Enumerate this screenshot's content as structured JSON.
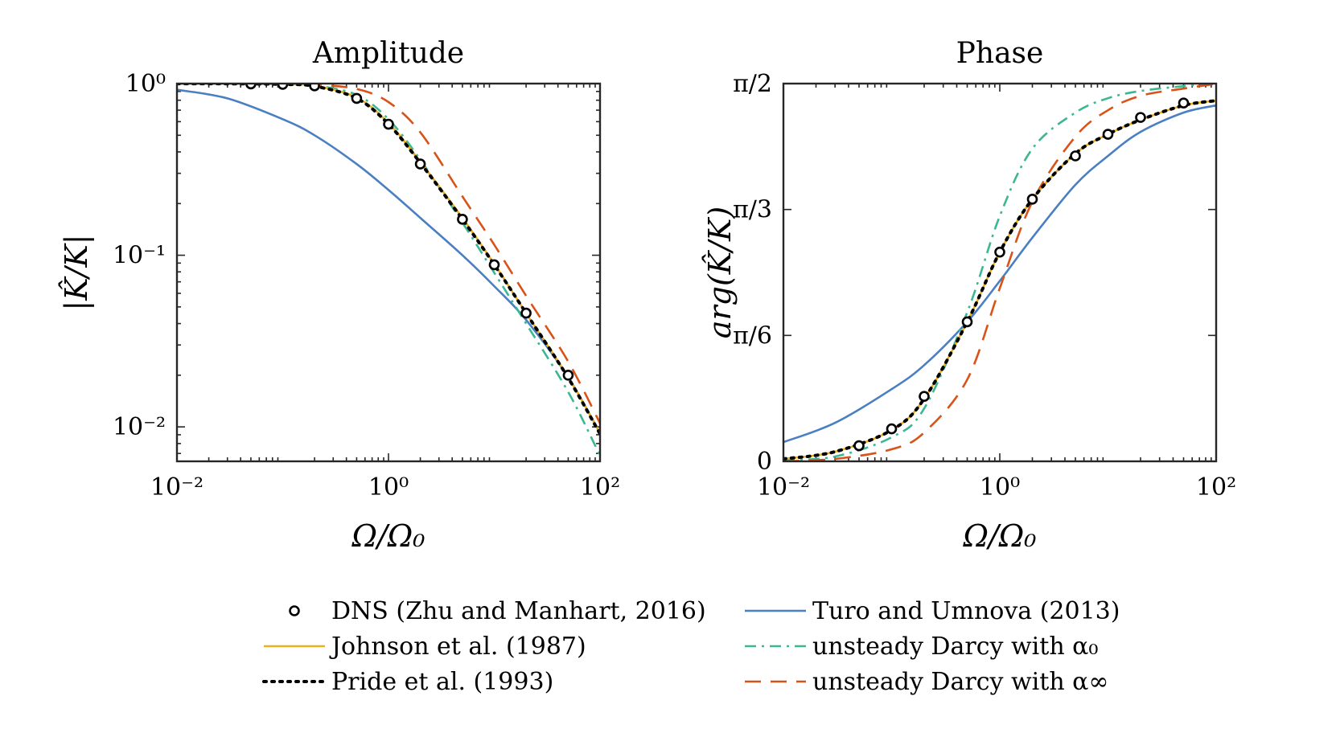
{
  "chart_data": [
    {
      "type": "line",
      "title": "Amplitude",
      "xlabel": "Ω/Ω₀",
      "ylabel": "|K̂/K|",
      "xscale": "log",
      "yscale": "log",
      "xlim": [
        0.01,
        100
      ],
      "ylim": [
        0.0063,
        1.0
      ],
      "x_ticks": [
        0.01,
        1,
        100
      ],
      "x_tick_labels": [
        "10⁻²",
        "10⁰",
        "10²"
      ],
      "y_ticks": [
        0.01,
        0.1,
        1
      ],
      "y_tick_labels": [
        "10⁻²",
        "10⁻¹",
        "10⁰"
      ],
      "series": [
        {
          "name": "DNS (Zhu and Manhart, 2016)",
          "style": "markers",
          "x": [
            0.05,
            0.1,
            0.2,
            0.5,
            1.0,
            2.0,
            5.0,
            10.0,
            20.0,
            50.0
          ],
          "values": [
            0.995,
            0.99,
            0.97,
            0.82,
            0.58,
            0.34,
            0.162,
            0.088,
            0.046,
            0.02
          ]
        },
        {
          "name": "Johnson et al. (1987)",
          "style": "solid",
          "x": [
            0.01,
            0.03,
            0.1,
            0.2,
            0.5,
            1.0,
            2.0,
            5.0,
            10.0,
            20.0,
            50.0,
            100.0
          ],
          "values": [
            0.999,
            0.998,
            0.99,
            0.97,
            0.83,
            0.59,
            0.35,
            0.165,
            0.089,
            0.046,
            0.0195,
            0.0092
          ]
        },
        {
          "name": "Pride et al. (1993)",
          "style": "dotted",
          "x": [
            0.01,
            0.03,
            0.1,
            0.2,
            0.5,
            1.0,
            2.0,
            5.0,
            10.0,
            20.0,
            50.0,
            100.0
          ],
          "values": [
            0.999,
            0.998,
            0.99,
            0.965,
            0.82,
            0.58,
            0.345,
            0.162,
            0.088,
            0.046,
            0.0193,
            0.0091
          ]
        },
        {
          "name": "Turo and Umnova (2013)",
          "style": "solid",
          "x": [
            0.01,
            0.03,
            0.1,
            0.2,
            0.5,
            1.0,
            2.0,
            5.0,
            10.0,
            20.0,
            50.0,
            100.0
          ],
          "values": [
            0.92,
            0.82,
            0.62,
            0.5,
            0.34,
            0.24,
            0.165,
            0.1,
            0.066,
            0.042,
            0.0195,
            0.0092
          ]
        },
        {
          "name": "unsteady Darcy with α₀",
          "style": "dashdot",
          "x": [
            0.01,
            0.03,
            0.1,
            0.2,
            0.5,
            1.0,
            2.0,
            5.0,
            10.0,
            20.0,
            50.0,
            100.0
          ],
          "values": [
            1.0,
            0.998,
            0.99,
            0.975,
            0.86,
            0.62,
            0.36,
            0.155,
            0.079,
            0.04,
            0.016,
            0.0068
          ]
        },
        {
          "name": "unsteady Darcy with α∞",
          "style": "dashed",
          "x": [
            0.01,
            0.03,
            0.1,
            0.2,
            0.5,
            1.0,
            2.0,
            5.0,
            10.0,
            20.0,
            50.0,
            100.0
          ],
          "values": [
            1.0,
            0.999,
            0.995,
            0.985,
            0.93,
            0.78,
            0.52,
            0.22,
            0.115,
            0.058,
            0.024,
            0.0105
          ]
        }
      ]
    },
    {
      "type": "line",
      "title": "Phase",
      "xlabel": "Ω/Ω₀",
      "ylabel": "arg(K̂/K)",
      "xscale": "log",
      "xlim": [
        0.01,
        100
      ],
      "ylim": [
        0,
        1.5708
      ],
      "x_ticks": [
        0.01,
        1,
        100
      ],
      "x_tick_labels": [
        "10⁻²",
        "10⁰",
        "10²"
      ],
      "y_ticks": [
        0,
        0.5236,
        1.0472,
        1.5708
      ],
      "y_tick_labels": [
        "0",
        "π/6",
        "π/3",
        "π/2"
      ],
      "series": [
        {
          "name": "DNS (Zhu and Manhart, 2016)",
          "style": "markers",
          "x": [
            0.05,
            0.1,
            0.2,
            0.5,
            1.0,
            2.0,
            5.0,
            10.0,
            20.0,
            50.0
          ],
          "values": [
            0.065,
            0.135,
            0.27,
            0.58,
            0.87,
            1.09,
            1.27,
            1.36,
            1.43,
            1.49
          ]
        },
        {
          "name": "Johnson et al. (1987)",
          "style": "solid",
          "x": [
            0.01,
            0.03,
            0.1,
            0.2,
            0.5,
            1.0,
            2.0,
            5.0,
            10.0,
            20.0,
            50.0,
            100.0
          ],
          "values": [
            0.01,
            0.04,
            0.13,
            0.26,
            0.58,
            0.87,
            1.09,
            1.28,
            1.36,
            1.42,
            1.48,
            1.5
          ]
        },
        {
          "name": "Pride et al. (1993)",
          "style": "dotted",
          "x": [
            0.01,
            0.03,
            0.1,
            0.2,
            0.5,
            1.0,
            2.0,
            5.0,
            10.0,
            20.0,
            50.0,
            100.0
          ],
          "values": [
            0.01,
            0.04,
            0.13,
            0.26,
            0.58,
            0.87,
            1.09,
            1.28,
            1.36,
            1.42,
            1.48,
            1.5
          ]
        },
        {
          "name": "Turo and Umnova (2013)",
          "style": "solid",
          "x": [
            0.01,
            0.03,
            0.1,
            0.2,
            0.5,
            1.0,
            2.0,
            5.0,
            10.0,
            20.0,
            50.0,
            100.0
          ],
          "values": [
            0.08,
            0.16,
            0.3,
            0.4,
            0.58,
            0.75,
            0.93,
            1.15,
            1.27,
            1.37,
            1.45,
            1.48
          ]
        },
        {
          "name": "unsteady Darcy with α₀",
          "style": "dashdot",
          "x": [
            0.01,
            0.03,
            0.1,
            0.2,
            0.5,
            1.0,
            2.0,
            5.0,
            10.0,
            20.0,
            50.0,
            100.0
          ],
          "values": [
            0.005,
            0.02,
            0.1,
            0.22,
            0.62,
            1.02,
            1.3,
            1.45,
            1.51,
            1.54,
            1.56,
            1.57
          ]
        },
        {
          "name": "unsteady Darcy with α∞",
          "style": "dashed",
          "x": [
            0.01,
            0.03,
            0.1,
            0.2,
            0.5,
            1.0,
            2.0,
            5.0,
            10.0,
            20.0,
            50.0,
            100.0
          ],
          "values": [
            0.0,
            0.01,
            0.05,
            0.12,
            0.34,
            0.72,
            1.08,
            1.35,
            1.46,
            1.52,
            1.55,
            1.57
          ]
        }
      ]
    }
  ],
  "colors": {
    "dns": "#000000",
    "johnson": "#EDB120",
    "pride": "#000000",
    "turo": "#4A7FC1",
    "darcy0": "#3BB893",
    "darcyinf": "#D95319"
  },
  "legend": {
    "entries": [
      "DNS (Zhu and Manhart, 2016)",
      "Johnson et al. (1987)",
      "Pride et al. (1993)",
      "Turo and Umnova (2013)",
      "unsteady Darcy with α₀",
      "unsteady Darcy with α∞"
    ]
  }
}
